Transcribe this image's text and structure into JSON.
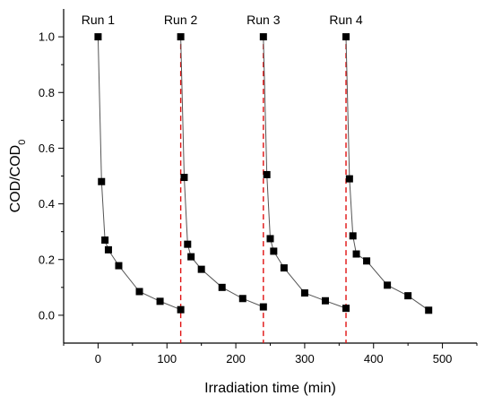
{
  "chart_data": {
    "type": "scatter",
    "xlabel": "Irradiation time (min)",
    "ylabel": {
      "main": "COD/COD",
      "sub": "0"
    },
    "xlim": [
      -50,
      550
    ],
    "ylim": [
      -0.1,
      1.1
    ],
    "xticks": [
      0,
      100,
      200,
      300,
      400,
      500
    ],
    "yticks": [
      0.0,
      0.2,
      0.4,
      0.6,
      0.8,
      1.0
    ],
    "grid": false,
    "colors": {
      "marker": "#000000",
      "line": "#555555",
      "divider": "#e01010"
    },
    "runs": [
      {
        "label": "Run 1",
        "x": [
          0,
          5,
          10,
          15,
          30,
          60,
          90,
          120
        ],
        "y": [
          1.0,
          0.48,
          0.27,
          0.235,
          0.178,
          0.085,
          0.05,
          0.02
        ]
      },
      {
        "label": "Run 2",
        "x": [
          120,
          125,
          130,
          135,
          150,
          180,
          210,
          240
        ],
        "y": [
          1.0,
          0.495,
          0.255,
          0.21,
          0.165,
          0.1,
          0.06,
          0.03
        ]
      },
      {
        "label": "Run 3",
        "x": [
          240,
          245,
          250,
          255,
          270,
          300,
          330,
          360
        ],
        "y": [
          1.0,
          0.505,
          0.275,
          0.23,
          0.17,
          0.08,
          0.052,
          0.025
        ]
      },
      {
        "label": "Run 4",
        "x": [
          360,
          365,
          370,
          375,
          390,
          420,
          450,
          480
        ],
        "y": [
          1.0,
          0.49,
          0.285,
          0.22,
          0.195,
          0.108,
          0.07,
          0.018
        ]
      }
    ],
    "dividers": [
      120,
      240,
      360
    ]
  }
}
